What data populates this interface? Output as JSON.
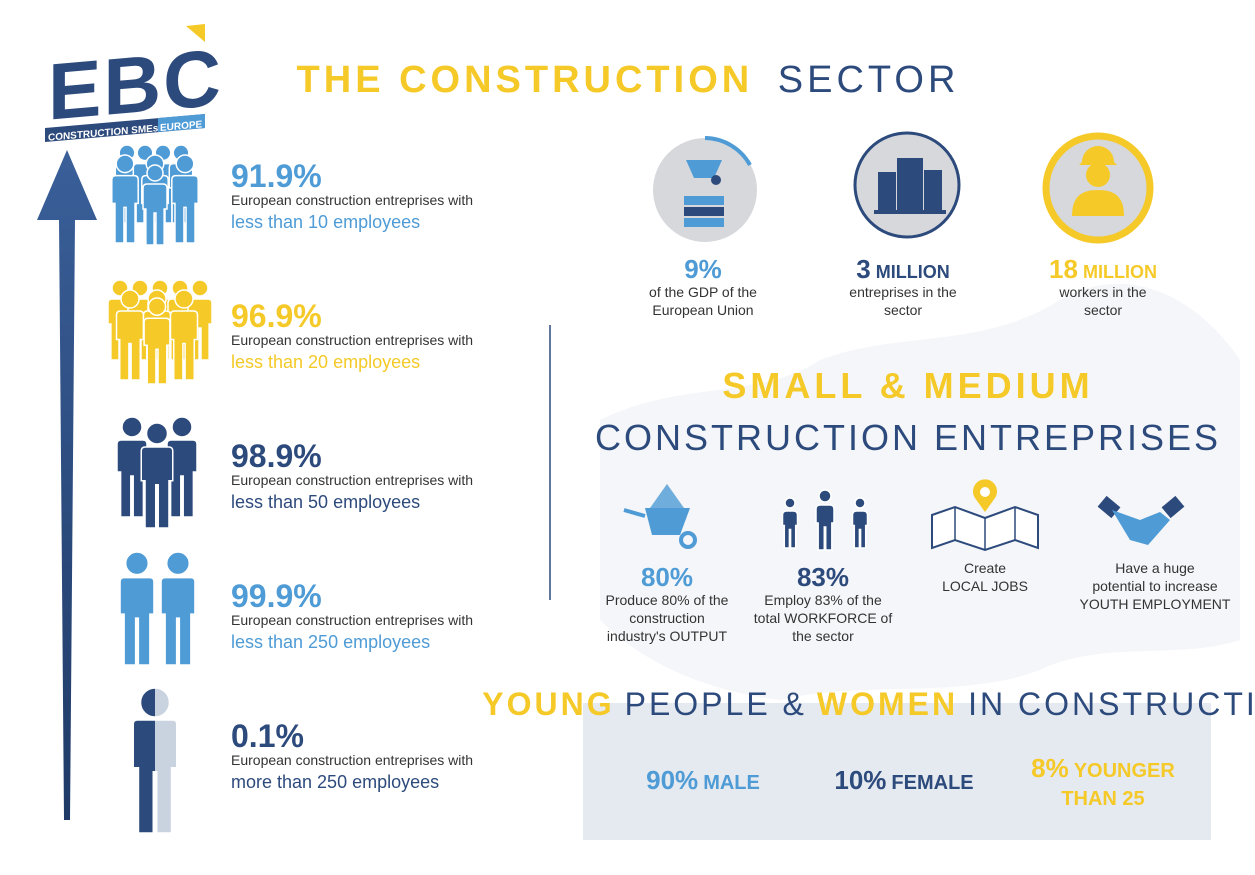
{
  "logo": {
    "mark": "EBC",
    "tagline": "CONSTRUCTION SMEs",
    "region": "EUROPE"
  },
  "size_breakdown": [
    {
      "share": "91.9%",
      "description": "European construction entreprises with",
      "size": "less than 10 employees",
      "color": "#4e9bd6"
    },
    {
      "share": "96.9%",
      "description": "European construction entreprises with",
      "size": "less than 20 employees",
      "color": "#f5c927"
    },
    {
      "share": "98.9%",
      "description": "European construction entreprises with",
      "size": "less than 50 employees",
      "color": "#2d4a7c"
    },
    {
      "share": "99.9%",
      "description": "European construction entreprises with",
      "size": "less than 250 employees",
      "color": "#4e9bd6"
    },
    {
      "share": "0.1%",
      "description": "European construction entreprises with",
      "size": "more than 250 employees",
      "color": "#2d4a7c"
    }
  ],
  "sector": {
    "title_highlight": "THE CONSTRUCTION",
    "title_rest": "SECTOR",
    "stats": [
      {
        "figure": "9%",
        "lines": [
          "of the GDP of the",
          "European Union"
        ],
        "color": "#4e9bd6"
      },
      {
        "figure": "3",
        "unit": "MILLION",
        "lines": [
          "entreprises in the",
          "sector"
        ],
        "color": "#2d4a7c"
      },
      {
        "figure": "18",
        "unit": "MILLION",
        "lines": [
          "workers in the",
          "sector"
        ],
        "color": "#f5c927"
      }
    ]
  },
  "sme": {
    "title_line1": "SMALL & MEDIUM",
    "title_line2": "CONSTRUCTION ENTREPRISES",
    "items": [
      {
        "figure": "80%",
        "lines": [
          "Produce 80% of the",
          "construction",
          "industry's OUTPUT"
        ],
        "color": "#4e9bd6"
      },
      {
        "figure": "83%",
        "lines": [
          "Employ 83% of the",
          "total WORKFORCE of",
          "the sector"
        ],
        "color": "#2d4a7c"
      },
      {
        "lines": [
          "Create",
          "LOCAL JOBS"
        ]
      },
      {
        "lines": [
          "Have a huge",
          "potential to increase",
          "YOUTH EMPLOYMENT"
        ]
      }
    ]
  },
  "young_women": {
    "title": [
      "YOUNG",
      "PEOPLE &",
      "WOMEN",
      "IN CONSTRUCTION"
    ],
    "stats": [
      {
        "figure": "90%",
        "label_lines": [
          "MALE"
        ],
        "color": "#4e9bd6"
      },
      {
        "figure": "10%",
        "label_lines": [
          "FEMALE"
        ],
        "color": "#2d4a7c"
      },
      {
        "figure": "8%",
        "label_lines": [
          "YOUNGER",
          "THAN 25"
        ],
        "color": "#f5c927"
      }
    ]
  }
}
